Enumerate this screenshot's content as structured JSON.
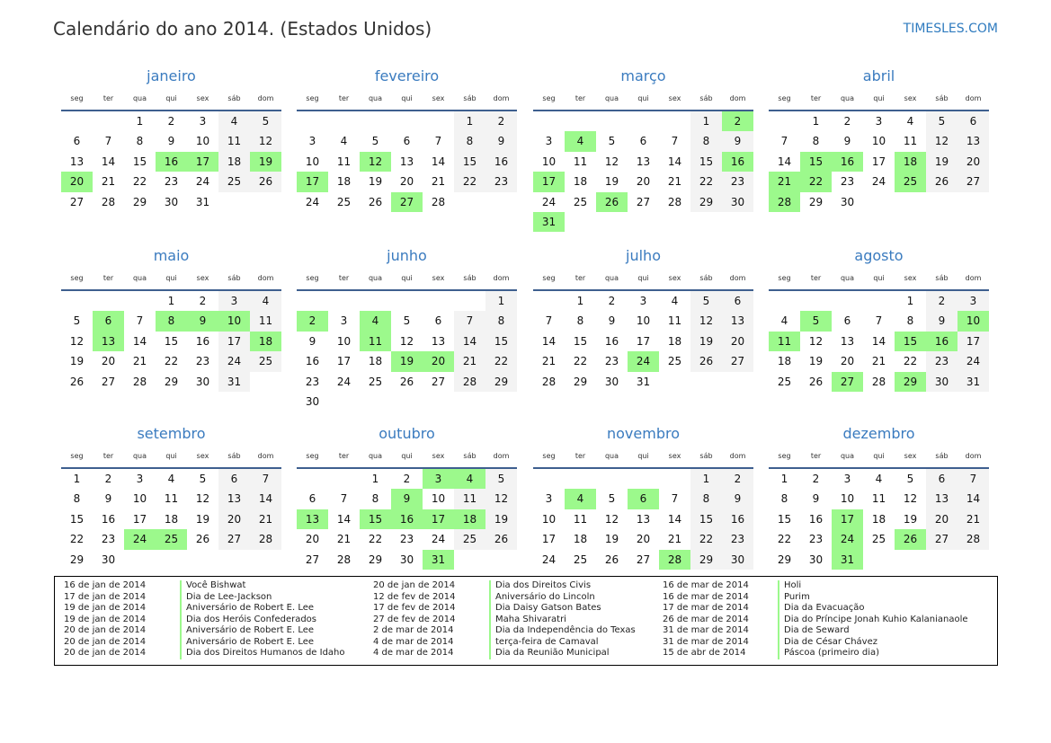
{
  "header": {
    "title": "Calendário do ano 2014. (Estados Unidos)",
    "brand": "TIMESLES.COM"
  },
  "weekdays": [
    "seg",
    "ter",
    "qua",
    "qui",
    "sex",
    "sáb",
    "dom"
  ],
  "colors": {
    "holiday": "#9cf98c",
    "weekend": "#f3f3f3",
    "title": "#3a7bbf",
    "rule": "#3e5f8f"
  },
  "months": [
    {
      "name": "janeiro",
      "start_offset": 2,
      "days": 31,
      "holidays": [
        16,
        17,
        19,
        20
      ]
    },
    {
      "name": "fevereiro",
      "start_offset": 5,
      "days": 28,
      "holidays": [
        12,
        17,
        27
      ]
    },
    {
      "name": "março",
      "start_offset": 5,
      "days": 31,
      "holidays": [
        2,
        4,
        16,
        17,
        26,
        31
      ]
    },
    {
      "name": "abril",
      "start_offset": 1,
      "days": 30,
      "holidays": [
        15,
        16,
        18,
        21,
        22,
        25,
        28
      ]
    },
    {
      "name": "maio",
      "start_offset": 3,
      "days": 31,
      "holidays": [
        6,
        8,
        9,
        10,
        13,
        18
      ]
    },
    {
      "name": "junho",
      "start_offset": 6,
      "days": 30,
      "holidays": [
        2,
        4,
        11,
        19,
        20
      ]
    },
    {
      "name": "julho",
      "start_offset": 1,
      "days": 31,
      "holidays": [
        24
      ]
    },
    {
      "name": "agosto",
      "start_offset": 4,
      "days": 31,
      "holidays": [
        5,
        10,
        11,
        15,
        16,
        27,
        29
      ]
    },
    {
      "name": "setembro",
      "start_offset": 0,
      "days": 30,
      "holidays": [
        24,
        25
      ]
    },
    {
      "name": "outubro",
      "start_offset": 2,
      "days": 31,
      "holidays": [
        3,
        4,
        9,
        13,
        15,
        16,
        17,
        18,
        31
      ]
    },
    {
      "name": "novembro",
      "start_offset": 5,
      "days": 30,
      "holidays": [
        4,
        6,
        28
      ]
    },
    {
      "name": "dezembro",
      "start_offset": 0,
      "days": 31,
      "holidays": [
        17,
        24,
        26,
        31
      ]
    }
  ],
  "legend": [
    {
      "date": "16 de jan de 2014",
      "name": "Você Bishwat"
    },
    {
      "date": "17 de jan de 2014",
      "name": "Dia de Lee-Jackson"
    },
    {
      "date": "19 de jan de 2014",
      "name": "Aniversário de Robert E. Lee"
    },
    {
      "date": "19 de jan de 2014",
      "name": "Dia dos Heróis Confederados"
    },
    {
      "date": "20 de jan de 2014",
      "name": "Aniversário de Robert E. Lee"
    },
    {
      "date": "20 de jan de 2014",
      "name": "Aniversário de Robert E. Lee"
    },
    {
      "date": "20 de jan de 2014",
      "name": "Dia dos Direitos Humanos de Idaho"
    },
    {
      "date": "20 de jan de 2014",
      "name": "Dia dos Direitos Civis"
    },
    {
      "date": "12 de fev de 2014",
      "name": "Aniversário do Lincoln"
    },
    {
      "date": "17 de fev de 2014",
      "name": "Dia Daisy Gatson Bates"
    },
    {
      "date": "27 de fev de 2014",
      "name": "Maha Shivaratri"
    },
    {
      "date": "2 de mar de 2014",
      "name": "Dia da Independência do Texas"
    },
    {
      "date": "4 de mar de 2014",
      "name": "terça-feira de Camaval"
    },
    {
      "date": "4 de mar de 2014",
      "name": "Dia da Reunião Municipal"
    },
    {
      "date": "16 de mar de 2014",
      "name": "Holi"
    },
    {
      "date": "16 de mar de 2014",
      "name": "Purim"
    },
    {
      "date": "17 de mar de 2014",
      "name": "Dia da Evacuação"
    },
    {
      "date": "26 de mar de 2014",
      "name": "Dia do Príncipe Jonah Kuhio Kalanianaole"
    },
    {
      "date": "31 de mar de 2014",
      "name": "Dia de Seward"
    },
    {
      "date": "31 de mar de 2014",
      "name": "Dia de César Chávez"
    },
    {
      "date": "15 de abr de 2014",
      "name": "Páscoa (primeiro dia)"
    }
  ]
}
